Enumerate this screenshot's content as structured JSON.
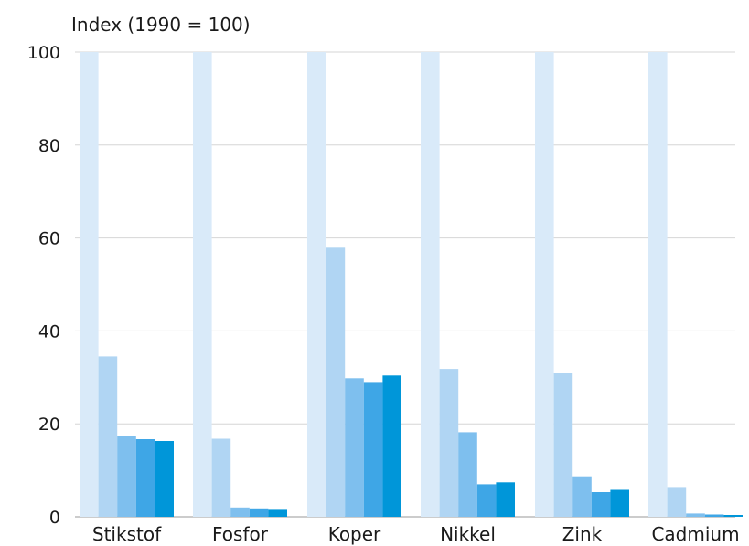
{
  "chart_data": {
    "type": "bar",
    "ylabel": "Index (1990 = 100)",
    "ylim": [
      0,
      100
    ],
    "yticks": [
      0,
      20,
      40,
      60,
      80,
      100
    ],
    "grid": true,
    "categories": [
      "Stikstof",
      "Fosfor",
      "Koper",
      "Nikkel",
      "Zink",
      "Cadmium"
    ],
    "series": [
      {
        "color": "#d9eaf9",
        "values": [
          100,
          100,
          100,
          100,
          100,
          100
        ]
      },
      {
        "color": "#b0d5f3",
        "values": [
          34.5,
          16.8,
          57.9,
          31.8,
          31.0,
          6.4
        ]
      },
      {
        "color": "#7ebfee",
        "values": [
          17.4,
          2.0,
          29.8,
          18.2,
          8.7,
          0.7
        ]
      },
      {
        "color": "#3ea6e6",
        "values": [
          16.7,
          1.8,
          29.0,
          7.0,
          5.3,
          0.5
        ]
      },
      {
        "color": "#0096d9",
        "values": [
          16.3,
          1.5,
          30.4,
          7.4,
          5.8,
          0.4
        ]
      }
    ]
  }
}
